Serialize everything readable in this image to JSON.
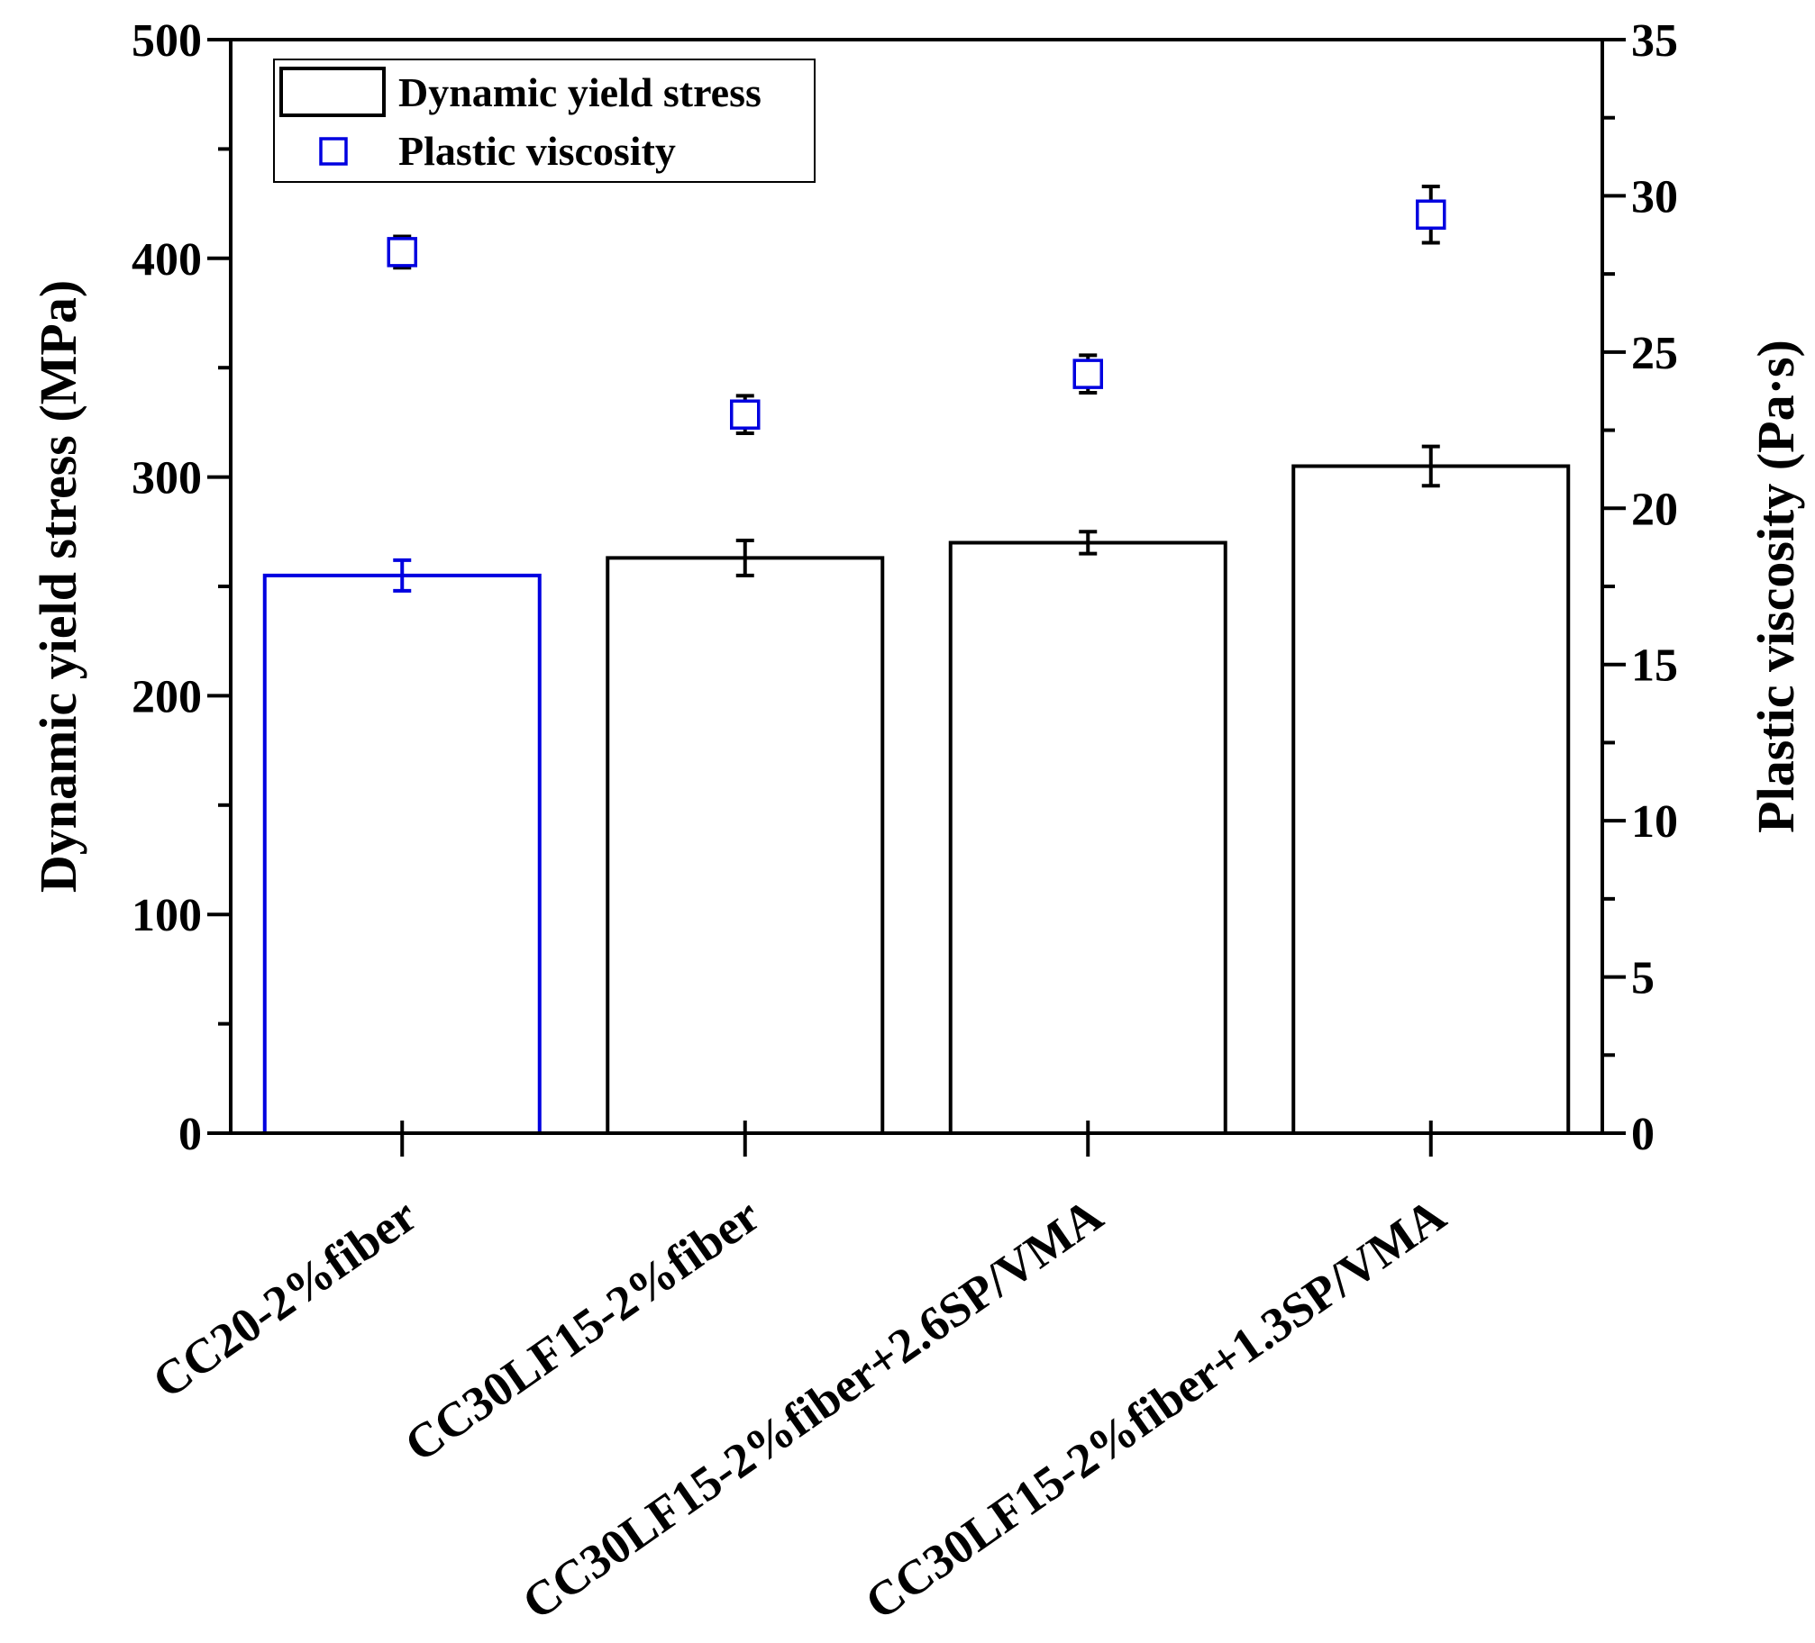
{
  "chart_data": {
    "type": "bar",
    "categories": [
      "CC20-2%fiber",
      "CC30LF15-2%fiber",
      "CC30LF15-2%fiber+2.6SP/VMA",
      "CC30LF15-2%fiber+1.3SP/VMA"
    ],
    "series": [
      {
        "name": "Dynamic yield stress",
        "type": "bar",
        "axis": "left",
        "values": [
          255,
          263,
          270,
          305
        ],
        "errors": [
          7,
          8,
          5,
          9
        ],
        "colors": [
          "#0000e0",
          "#000000",
          "#000000",
          "#000000"
        ]
      },
      {
        "name": "Plastic viscosity",
        "type": "scatter",
        "axis": "right",
        "values": [
          28.2,
          23.0,
          24.3,
          29.4
        ],
        "errors": [
          0.5,
          0.6,
          0.6,
          0.9
        ],
        "color": "#0000e0"
      }
    ],
    "ylabel": "Dynamic yield stress (MPa)",
    "ylabel_right": "Plastic viscosity (Pa·s)",
    "ylim": [
      0,
      500
    ],
    "ylim_right": [
      0,
      35
    ],
    "yticks": [
      0,
      100,
      200,
      300,
      400,
      500
    ],
    "yticks_right": [
      0,
      5,
      10,
      15,
      20,
      25,
      30,
      35
    ],
    "legend_position": "top-left",
    "grid": false
  }
}
